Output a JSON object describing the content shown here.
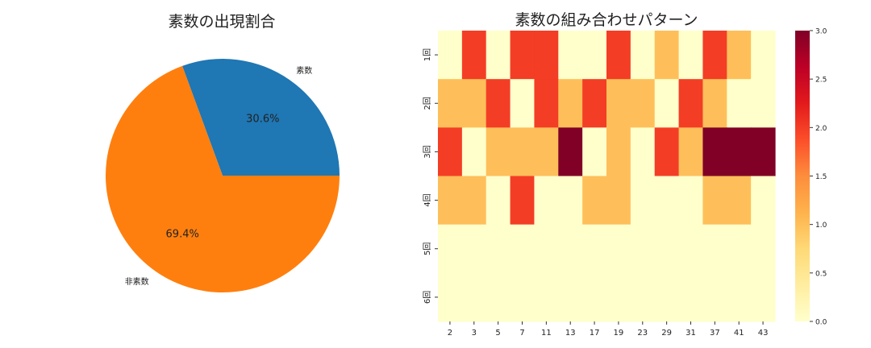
{
  "chart_data": [
    {
      "type": "pie",
      "title": "素数の出現割合",
      "labels": [
        "素数",
        "非素数"
      ],
      "values": [
        30.6,
        69.4
      ],
      "value_labels": [
        "30.6%",
        "69.4%"
      ],
      "colors": [
        "#1f77b4",
        "#ff7f0e"
      ],
      "start_angle_deg": 0,
      "direction": "counterclockwise"
    },
    {
      "type": "heatmap",
      "title": "素数の組み合わせパターン",
      "x_categories": [
        "2",
        "3",
        "5",
        "7",
        "11",
        "13",
        "17",
        "19",
        "23",
        "29",
        "31",
        "37",
        "41",
        "43"
      ],
      "y_categories": [
        "1回",
        "2回",
        "3回",
        "4回",
        "5回",
        "6回"
      ],
      "matrix": [
        [
          0,
          2,
          0,
          2,
          2,
          0,
          0,
          2,
          0,
          1,
          0,
          2,
          1,
          0
        ],
        [
          1,
          1,
          2,
          0,
          2,
          1,
          2,
          1,
          1,
          0,
          2,
          1,
          0,
          0
        ],
        [
          2,
          0,
          1,
          1,
          1,
          3,
          0,
          1,
          0,
          2,
          1,
          3,
          3,
          3
        ],
        [
          1,
          1,
          0,
          2,
          0,
          0,
          1,
          1,
          0,
          0,
          0,
          1,
          1,
          0
        ],
        [
          0,
          0,
          0,
          0,
          0,
          0,
          0,
          0,
          0,
          0,
          0,
          0,
          0,
          0
        ],
        [
          0,
          0,
          0,
          0,
          0,
          0,
          0,
          0,
          0,
          0,
          0,
          0,
          0,
          0
        ]
      ],
      "colormap": "YlOrRd",
      "colorbar": {
        "range": [
          0,
          3.0
        ],
        "ticks": [
          "0.0",
          "0.5",
          "1.0",
          "1.5",
          "2.0",
          "2.5",
          "3.0"
        ]
      }
    }
  ]
}
